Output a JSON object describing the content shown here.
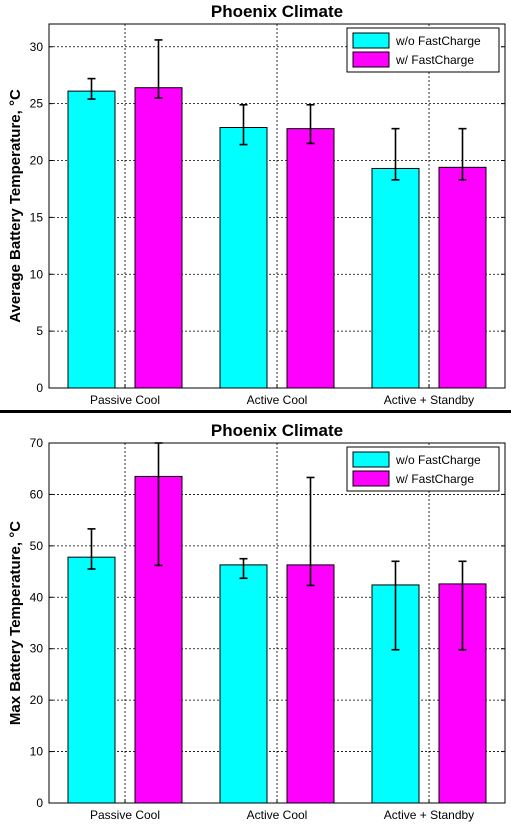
{
  "colors": {
    "series_1": "#00FFFF",
    "series_2": "#FF00FF",
    "axis": "#000000",
    "grid": "#000000",
    "background": "#FFFFFF"
  },
  "chart_data": [
    {
      "type": "bar",
      "title": "Phoenix Climate",
      "ylabel": "Average Battery Temperature, °C",
      "xlabel": "",
      "categories": [
        "Passive Cool",
        "Active Cool",
        "Active + Standby"
      ],
      "ylim": [
        0,
        32
      ],
      "yticks": [
        0,
        5,
        10,
        15,
        20,
        25,
        30
      ],
      "grid": true,
      "legend_position": "top-right",
      "series": [
        {
          "name": "w/o FastCharge",
          "values": [
            26.1,
            22.9,
            19.3
          ],
          "err_low": [
            25.4,
            21.4,
            18.3
          ],
          "err_high": [
            27.2,
            24.9,
            22.8
          ]
        },
        {
          "name": "w/ FastCharge",
          "values": [
            26.4,
            22.8,
            19.4
          ],
          "err_low": [
            25.5,
            21.5,
            18.3
          ],
          "err_high": [
            30.6,
            24.9,
            22.8
          ]
        }
      ]
    },
    {
      "type": "bar",
      "title": "Phoenix Climate",
      "ylabel": "Max Battery Temperature, °C",
      "xlabel": "",
      "categories": [
        "Passive Cool",
        "Active Cool",
        "Active + Standby"
      ],
      "ylim": [
        0,
        70
      ],
      "yticks": [
        0,
        10,
        20,
        30,
        40,
        50,
        60,
        70
      ],
      "grid": true,
      "legend_position": "top-right",
      "series": [
        {
          "name": "w/o FastCharge",
          "values": [
            47.8,
            46.3,
            42.4
          ],
          "err_low": [
            45.5,
            43.7,
            29.8
          ],
          "err_high": [
            53.3,
            47.5,
            47.0
          ]
        },
        {
          "name": "w/ FastCharge",
          "values": [
            63.5,
            46.3,
            42.6
          ],
          "err_low": [
            46.2,
            42.3,
            29.8
          ],
          "err_high": [
            70.0,
            63.3,
            47.0
          ]
        }
      ]
    }
  ]
}
